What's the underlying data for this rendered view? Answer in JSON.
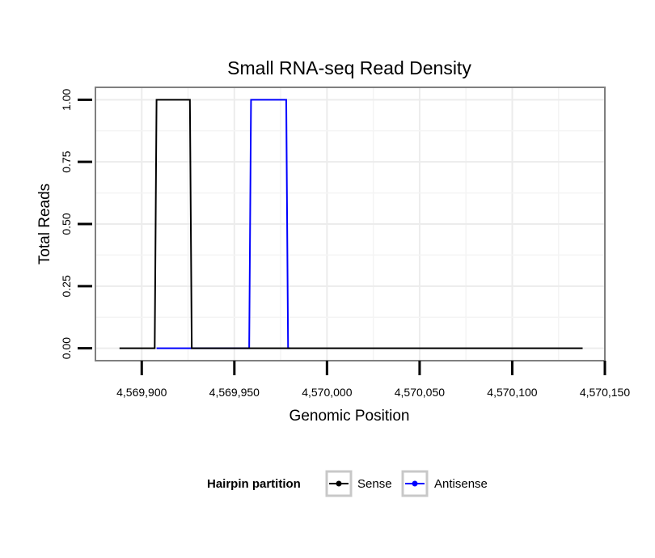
{
  "chart_data": {
    "type": "line",
    "title": "Small RNA-seq Read Density",
    "xlabel": "Genomic Position",
    "ylabel": "Total Reads",
    "xlim": [
      4569875,
      4570150
    ],
    "ylim": [
      -0.05,
      1.05
    ],
    "x_ticks": [
      4569900,
      4569950,
      4570000,
      4570050,
      4570100,
      4570150
    ],
    "x_tick_labels": [
      "4,569,900",
      "4,569,950",
      "4,570,000",
      "4,570,050",
      "4,570,100",
      "4,570,150"
    ],
    "y_ticks": [
      0,
      0.25,
      0.5,
      0.75,
      1
    ],
    "y_tick_labels": [
      "0.00",
      "0.25",
      "0.50",
      "0.75",
      "1.00"
    ],
    "grid": true,
    "legend": {
      "title": "Hairpin partition",
      "position": "bottom"
    },
    "series": [
      {
        "name": "Sense",
        "color": "#000000",
        "x": [
          4569888,
          4569907,
          4569908,
          4569926,
          4569927,
          4569959,
          4569979,
          4570138
        ],
        "y": [
          0,
          0,
          1,
          1,
          0,
          0,
          0,
          0
        ]
      },
      {
        "name": "Antisense",
        "color": "#0000ff",
        "x": [
          4569908,
          4569958,
          4569959,
          4569978,
          4569979,
          4569980
        ],
        "y": [
          0,
          0,
          1,
          1,
          0,
          0
        ]
      }
    ]
  }
}
